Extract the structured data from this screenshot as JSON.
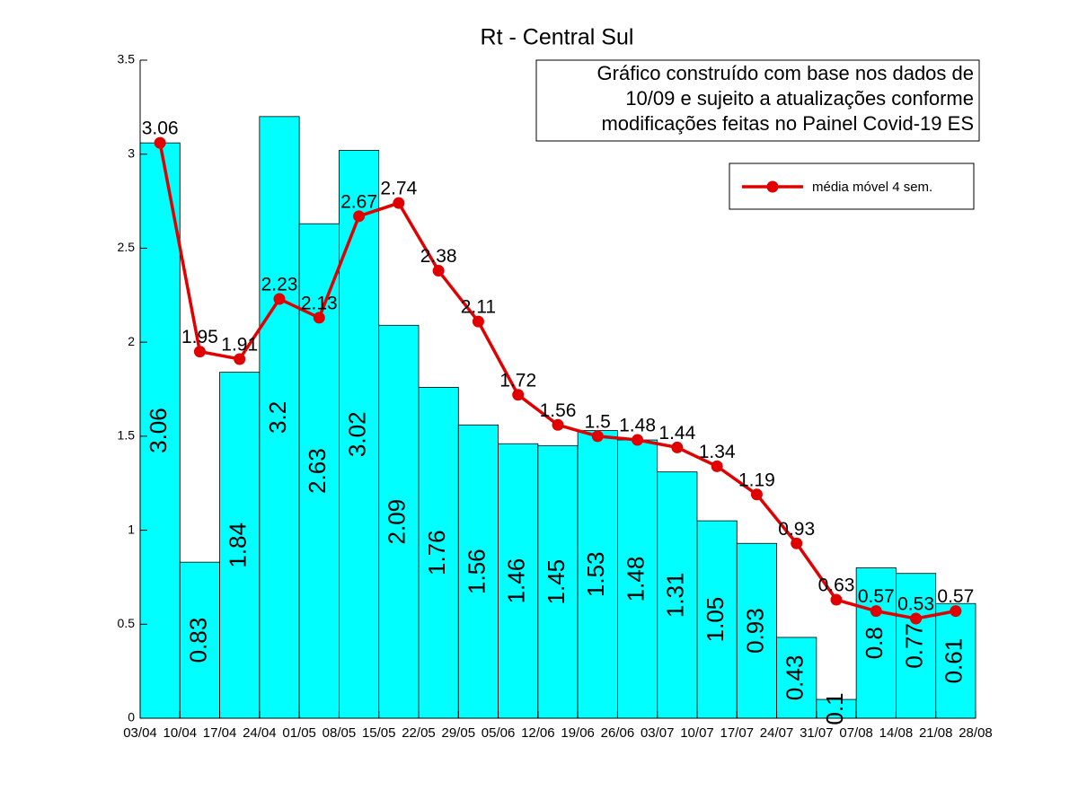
{
  "chart_data": {
    "type": "bar",
    "title": "Rt - Central Sul",
    "annotation": [
      "Gráfico construído com base nos dados de",
      "10/09 e sujeito a atualizações conforme",
      "modificações feitas no Painel Covid-19 ES"
    ],
    "xtick_labels": [
      "03/04",
      "10/04",
      "17/04",
      "24/04",
      "01/05",
      "08/05",
      "15/05",
      "22/05",
      "29/05",
      "05/06",
      "12/06",
      "19/06",
      "26/06",
      "03/07",
      "10/07",
      "17/07",
      "24/07",
      "31/07",
      "07/08",
      "14/08",
      "21/08",
      "28/08"
    ],
    "bars": {
      "color": "#00ffff",
      "values": [
        3.06,
        0.83,
        1.84,
        3.2,
        2.63,
        3.02,
        2.09,
        1.76,
        1.56,
        1.46,
        1.45,
        1.53,
        1.48,
        1.31,
        1.05,
        0.93,
        0.43,
        0.1,
        0.8,
        0.77,
        0.61
      ]
    },
    "line": {
      "name": "média móvel 4 sem.",
      "color": "#e00000",
      "values": [
        3.06,
        1.95,
        1.91,
        2.23,
        2.13,
        2.67,
        2.74,
        2.38,
        2.11,
        1.72,
        1.56,
        1.5,
        1.48,
        1.44,
        1.34,
        1.19,
        0.93,
        0.63,
        0.57,
        0.53,
        0.57
      ]
    },
    "ylim": [
      0,
      3.5
    ],
    "yticks": [
      0,
      0.5,
      1,
      1.5,
      2,
      2.5,
      3,
      3.5
    ],
    "legend": "upper right"
  }
}
